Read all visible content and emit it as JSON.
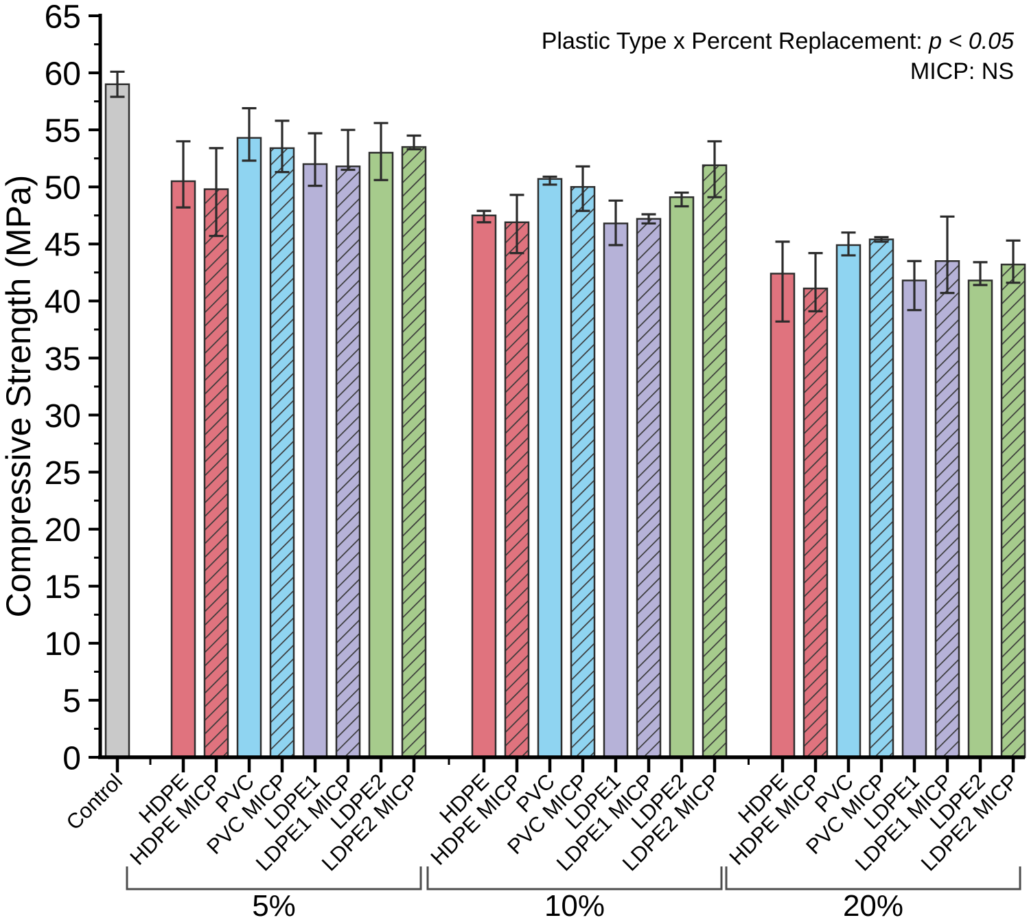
{
  "figure": {
    "annotation": {
      "line1_prefix": "Plastic Type x Percent Replacement: ",
      "line1_value": "p < 0.05",
      "line2": "MICP: NS"
    }
  },
  "chart_data": {
    "type": "bar",
    "title": "",
    "xlabel": "",
    "ylabel": "Compressive Strength (MPa)",
    "ylim": [
      0,
      65
    ],
    "ytick_step": 5,
    "yminor_step": 2.5,
    "grid": false,
    "legend_position": "none",
    "annotation_lines": [
      "Plastic Type x Percent Replacement: p < 0.05",
      "MICP: NS"
    ],
    "colors": {
      "control": "#c9c9c9",
      "HDPE": "#e0737e",
      "PVC": "#8fd4f1",
      "LDPE1": "#b6b2d8",
      "LDPE2": "#a6cb8c"
    },
    "bar_edge_color": "#2e2e2e",
    "error_bar_color": "#2b2b2b",
    "hatch_line_color": "#3a3a3a",
    "bracket_color": "#4d4d4d",
    "control": {
      "label": "Control",
      "type": "control",
      "hatch": false,
      "value": 59.0,
      "err_low": 57.9,
      "err_high": 60.1
    },
    "groups": [
      {
        "label": "5%",
        "bars": [
          {
            "label": "HDPE",
            "type": "HDPE",
            "hatch": false,
            "value": 50.5,
            "err_low": 48.2,
            "err_high": 54.0
          },
          {
            "label": "HDPE MICP",
            "type": "HDPE",
            "hatch": true,
            "value": 49.8,
            "err_low": 45.7,
            "err_high": 53.4
          },
          {
            "label": "PVC",
            "type": "PVC",
            "hatch": false,
            "value": 54.3,
            "err_low": 52.3,
            "err_high": 56.9
          },
          {
            "label": "PVC MICP",
            "type": "PVC",
            "hatch": true,
            "value": 53.4,
            "err_low": 51.3,
            "err_high": 55.8
          },
          {
            "label": "LDPE1",
            "type": "LDPE1",
            "hatch": false,
            "value": 52.0,
            "err_low": 50.1,
            "err_high": 54.7
          },
          {
            "label": "LDPE1 MICP",
            "type": "LDPE1",
            "hatch": true,
            "value": 51.8,
            "err_low": 51.5,
            "err_high": 55.0
          },
          {
            "label": "LDPE2",
            "type": "LDPE2",
            "hatch": false,
            "value": 53.0,
            "err_low": 50.6,
            "err_high": 55.6
          },
          {
            "label": "LDPE2 MICP",
            "type": "LDPE2",
            "hatch": true,
            "value": 53.5,
            "err_low": 53.3,
            "err_high": 54.5
          }
        ]
      },
      {
        "label": "10%",
        "bars": [
          {
            "label": "HDPE",
            "type": "HDPE",
            "hatch": false,
            "value": 47.5,
            "err_low": 46.9,
            "err_high": 47.9
          },
          {
            "label": "HDPE MICP",
            "type": "HDPE",
            "hatch": true,
            "value": 46.9,
            "err_low": 44.2,
            "err_high": 49.3
          },
          {
            "label": "PVC",
            "type": "PVC",
            "hatch": false,
            "value": 50.7,
            "err_low": 50.2,
            "err_high": 50.9
          },
          {
            "label": "PVC MICP",
            "type": "PVC",
            "hatch": true,
            "value": 50.0,
            "err_low": 47.9,
            "err_high": 51.8
          },
          {
            "label": "LDPE1",
            "type": "LDPE1",
            "hatch": false,
            "value": 46.8,
            "err_low": 44.9,
            "err_high": 48.8
          },
          {
            "label": "LDPE1 MICP",
            "type": "LDPE1",
            "hatch": true,
            "value": 47.2,
            "err_low": 46.8,
            "err_high": 47.6
          },
          {
            "label": "LDPE2",
            "type": "LDPE2",
            "hatch": false,
            "value": 49.1,
            "err_low": 48.3,
            "err_high": 49.5
          },
          {
            "label": "LDPE2 MICP",
            "type": "LDPE2",
            "hatch": true,
            "value": 51.9,
            "err_low": 49.1,
            "err_high": 54.0
          }
        ]
      },
      {
        "label": "20%",
        "bars": [
          {
            "label": "HDPE",
            "type": "HDPE",
            "hatch": false,
            "value": 42.4,
            "err_low": 38.2,
            "err_high": 45.2
          },
          {
            "label": "HDPE MICP",
            "type": "HDPE",
            "hatch": true,
            "value": 41.1,
            "err_low": 39.1,
            "err_high": 44.2
          },
          {
            "label": "PVC",
            "type": "PVC",
            "hatch": false,
            "value": 44.9,
            "err_low": 44.0,
            "err_high": 46.0
          },
          {
            "label": "PVC MICP",
            "type": "PVC",
            "hatch": true,
            "value": 45.4,
            "err_low": 45.2,
            "err_high": 45.6
          },
          {
            "label": "LDPE1",
            "type": "LDPE1",
            "hatch": false,
            "value": 41.8,
            "err_low": 39.2,
            "err_high": 43.5
          },
          {
            "label": "LDPE1 MICP",
            "type": "LDPE1",
            "hatch": true,
            "value": 43.5,
            "err_low": 40.7,
            "err_high": 47.4
          },
          {
            "label": "LDPE2",
            "type": "LDPE2",
            "hatch": false,
            "value": 41.8,
            "err_low": 41.4,
            "err_high": 43.4
          },
          {
            "label": "LDPE2 MICP",
            "type": "LDPE2",
            "hatch": true,
            "value": 43.2,
            "err_low": 41.6,
            "err_high": 45.3
          }
        ]
      }
    ]
  }
}
